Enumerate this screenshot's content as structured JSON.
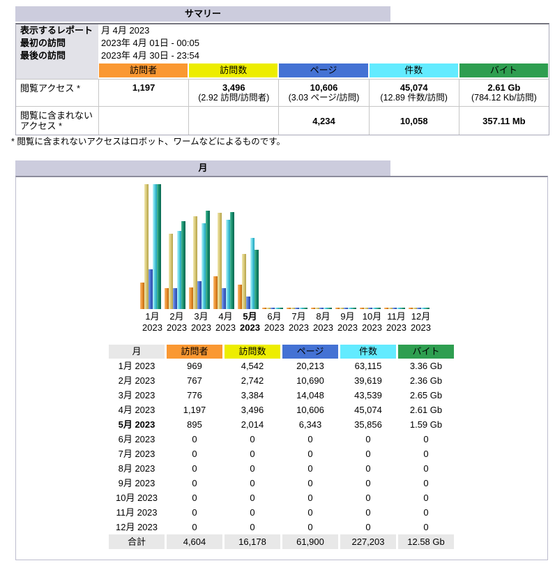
{
  "summary": {
    "title": "サマリー",
    "info_rows": [
      {
        "label": "表示するレポート",
        "value": "月 4月 2023"
      },
      {
        "label": "最初の訪問",
        "value": "2023年 4月 01日 - 00:05"
      },
      {
        "label": "最後の訪問",
        "value": "2023年 4月 30日 - 23:54"
      }
    ],
    "columns": [
      {
        "label": "訪問者",
        "color": "#FA9832"
      },
      {
        "label": "訪問数",
        "color": "#EDED00"
      },
      {
        "label": "ページ",
        "color": "#4472D4"
      },
      {
        "label": "件数",
        "color": "#63EBFF"
      },
      {
        "label": "バイト",
        "color": "#2E9E50"
      }
    ],
    "rows": [
      {
        "label": "閲覧アクセス *",
        "cells": [
          {
            "main": "1,197",
            "sub": ""
          },
          {
            "main": "3,496",
            "sub": "(2.92 訪問/訪問者)"
          },
          {
            "main": "10,606",
            "sub": "(3.03 ページ/訪問)"
          },
          {
            "main": "45,074",
            "sub": "(12.89 件数/訪問)"
          },
          {
            "main": "2.61 Gb",
            "sub": "(784.12 Kb/訪問)"
          }
        ]
      },
      {
        "label": "閲覧に含まれないアクセス *",
        "cells": [
          {
            "main": "",
            "sub": ""
          },
          {
            "main": "",
            "sub": ""
          },
          {
            "main": "4,234",
            "sub": ""
          },
          {
            "main": "10,058",
            "sub": ""
          },
          {
            "main": "357.11 Mb",
            "sub": ""
          }
        ]
      }
    ],
    "footnote": "* 閲覧に含まれないアクセスはロボット、ワームなどによるものです。"
  },
  "monthly": {
    "title": "月",
    "table": {
      "headers": [
        {
          "label": "月",
          "color": "#E8E8E8"
        },
        {
          "label": "訪問者",
          "color": "#FA9832"
        },
        {
          "label": "訪問数",
          "color": "#EDED00"
        },
        {
          "label": "ページ",
          "color": "#4472D4"
        },
        {
          "label": "件数",
          "color": "#63EBFF"
        },
        {
          "label": "バイト",
          "color": "#2E9E50"
        }
      ],
      "rows": [
        {
          "label": "1月 2023",
          "bold": false,
          "values": [
            "969",
            "4,542",
            "20,213",
            "63,115",
            "3.36 Gb"
          ]
        },
        {
          "label": "2月 2023",
          "bold": false,
          "values": [
            "767",
            "2,742",
            "10,690",
            "39,619",
            "2.36 Gb"
          ]
        },
        {
          "label": "3月 2023",
          "bold": false,
          "values": [
            "776",
            "3,384",
            "14,048",
            "43,539",
            "2.65 Gb"
          ]
        },
        {
          "label": "4月 2023",
          "bold": false,
          "values": [
            "1,197",
            "3,496",
            "10,606",
            "45,074",
            "2.61 Gb"
          ]
        },
        {
          "label": "5月 2023",
          "bold": true,
          "values": [
            "895",
            "2,014",
            "6,343",
            "35,856",
            "1.59 Gb"
          ]
        },
        {
          "label": "6月 2023",
          "bold": false,
          "values": [
            "0",
            "0",
            "0",
            "0",
            "0"
          ]
        },
        {
          "label": "7月 2023",
          "bold": false,
          "values": [
            "0",
            "0",
            "0",
            "0",
            "0"
          ]
        },
        {
          "label": "8月 2023",
          "bold": false,
          "values": [
            "0",
            "0",
            "0",
            "0",
            "0"
          ]
        },
        {
          "label": "9月 2023",
          "bold": false,
          "values": [
            "0",
            "0",
            "0",
            "0",
            "0"
          ]
        },
        {
          "label": "10月 2023",
          "bold": false,
          "values": [
            "0",
            "0",
            "0",
            "0",
            "0"
          ]
        },
        {
          "label": "11月 2023",
          "bold": false,
          "values": [
            "0",
            "0",
            "0",
            "0",
            "0"
          ]
        },
        {
          "label": "12月 2023",
          "bold": false,
          "values": [
            "0",
            "0",
            "0",
            "0",
            "0"
          ]
        }
      ],
      "total_label": "合計",
      "totals": [
        "4,604",
        "16,178",
        "61,900",
        "227,203",
        "12.58 Gb"
      ]
    }
  },
  "chart_data": {
    "type": "bar",
    "title": "月",
    "categories": [
      "1月 2023",
      "2月 2023",
      "3月 2023",
      "4月 2023",
      "5月 2023",
      "6月 2023",
      "7月 2023",
      "8月 2023",
      "9月 2023",
      "10月 2023",
      "11月 2023",
      "12月 2023"
    ],
    "month_line1": [
      "1月",
      "2月",
      "3月",
      "4月",
      "5月",
      "6月",
      "7月",
      "8月",
      "9月",
      "10月",
      "11月",
      "12月"
    ],
    "month_line2": "2023",
    "current_month_index": 4,
    "series": [
      {
        "name": "訪問者",
        "color": "#EE9434",
        "values": [
          969,
          767,
          776,
          1197,
          895,
          0,
          0,
          0,
          0,
          0,
          0,
          0
        ]
      },
      {
        "name": "訪問数",
        "color": "#DBCB7C",
        "values": [
          4542,
          2742,
          3384,
          3496,
          2014,
          0,
          0,
          0,
          0,
          0,
          0,
          0
        ]
      },
      {
        "name": "ページ",
        "color": "#4A70D2",
        "values": [
          20213,
          10690,
          14048,
          10606,
          6343,
          0,
          0,
          0,
          0,
          0,
          0,
          0
        ]
      },
      {
        "name": "件数",
        "color": "#5FD4E4",
        "values": [
          63115,
          39619,
          43539,
          45074,
          35856,
          0,
          0,
          0,
          0,
          0,
          0,
          0
        ]
      },
      {
        "name": "バイト (Gb)",
        "color": "#17906F",
        "values": [
          3.36,
          2.36,
          2.65,
          2.61,
          1.59,
          0,
          0,
          0,
          0,
          0,
          0,
          0
        ]
      }
    ],
    "scale_groups": [
      [
        0,
        1
      ],
      [
        2,
        3
      ],
      [
        4
      ]
    ],
    "ylabel": "",
    "grid": false,
    "legend_position": "none (series colors match table header colors)"
  }
}
